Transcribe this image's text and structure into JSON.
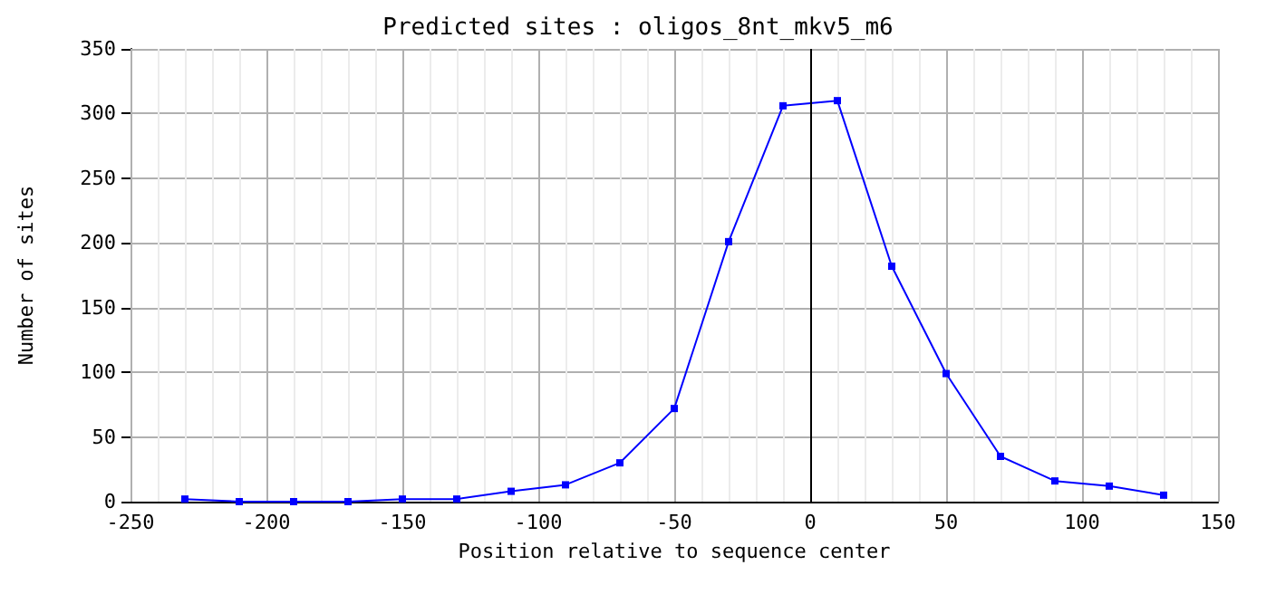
{
  "chart_data": {
    "type": "line",
    "title": "Predicted sites : oligos_8nt_mkv5_m6",
    "xlabel": "Position relative to sequence center",
    "ylabel": "Number of sites",
    "x": [
      -230,
      -210,
      -190,
      -170,
      -150,
      -130,
      -110,
      -90,
      -70,
      -50,
      -30,
      -10,
      10,
      30,
      50,
      70,
      90,
      110,
      130
    ],
    "series": [
      {
        "color": "#0000ff",
        "values": [
          2,
          0,
          0,
          0,
          2,
          2,
          8,
          13,
          30,
          72,
          201,
          306,
          310,
          182,
          99,
          35,
          16,
          12,
          5
        ]
      }
    ],
    "xlim": [
      -250,
      150
    ],
    "xticks": [
      -250,
      {
        "value": -240,
        "label": null
      },
      {
        "value": -230,
        "label": null
      },
      {
        "value": -220,
        "label": null
      },
      {
        "value": -210,
        "label": null
      },
      -200,
      {
        "value": -190,
        "label": null
      },
      {
        "value": -180,
        "label": null
      },
      {
        "value": -170,
        "label": null
      },
      {
        "value": -160,
        "label": null
      },
      -150,
      {
        "value": -140,
        "label": null
      },
      {
        "value": -130,
        "label": null
      },
      {
        "value": -120,
        "label": null
      },
      {
        "value": -110,
        "label": null
      },
      -100,
      {
        "value": -90,
        "label": null
      },
      {
        "value": -80,
        "label": null
      },
      {
        "value": -70,
        "label": null
      },
      {
        "value": -60,
        "label": null
      },
      -50,
      {
        "value": -40,
        "label": null
      },
      {
        "value": -30,
        "label": null
      },
      {
        "value": -20,
        "label": null
      },
      {
        "value": -10,
        "label": null
      },
      0,
      {
        "value": 10,
        "label": null
      },
      {
        "value": 20,
        "label": null
      },
      {
        "value": 30,
        "label": null
      },
      {
        "value": 40,
        "label": null
      },
      50,
      {
        "value": 60,
        "label": null
      },
      {
        "value": 70,
        "label": null
      },
      {
        "value": 80,
        "label": null
      },
      {
        "value": 90,
        "label": null
      },
      100,
      {
        "value": 110,
        "label": null
      },
      {
        "value": 120,
        "label": null
      },
      {
        "value": 130,
        "label": null
      },
      {
        "value": 140,
        "label": null
      },
      150
    ],
    "ylim": [
      0,
      350
    ],
    "yticks": [
      0,
      50,
      100,
      150,
      200,
      250,
      300,
      350
    ],
    "grid": true,
    "marker": "square",
    "line_style": "solid",
    "ref_lines": [
      {
        "axis": "x",
        "value": 0,
        "color": "#000000"
      }
    ]
  }
}
